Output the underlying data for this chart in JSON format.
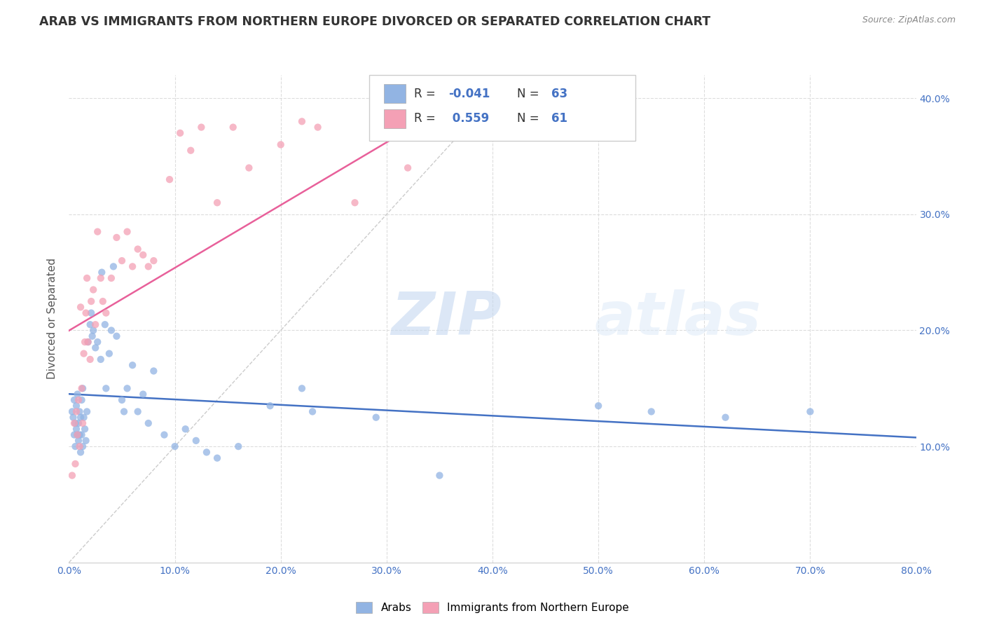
{
  "title": "ARAB VS IMMIGRANTS FROM NORTHERN EUROPE DIVORCED OR SEPARATED CORRELATION CHART",
  "source": "Source: ZipAtlas.com",
  "ylabel_label": "Divorced or Separated",
  "legend_label_bottom_1": "Arabs",
  "legend_label_bottom_2": "Immigrants from Northern Europe",
  "color_blue": "#92b4e3",
  "color_pink": "#f4a0b5",
  "color_blue_line": "#4472c4",
  "color_pink_line": "#e8609a",
  "color_diag": "#cccccc",
  "watermark_zip": "ZIP",
  "watermark_atlas": "atlas",
  "xlim": [
    0,
    80
  ],
  "ylim": [
    0,
    42
  ],
  "x_tick_vals": [
    0,
    10,
    20,
    30,
    40,
    50,
    60,
    70,
    80
  ],
  "y_tick_vals": [
    10,
    20,
    30,
    40
  ],
  "Arabs_x": [
    0.3,
    0.4,
    0.5,
    0.5,
    0.6,
    0.6,
    0.7,
    0.7,
    0.8,
    0.8,
    0.9,
    0.9,
    1.0,
    1.0,
    1.1,
    1.1,
    1.2,
    1.2,
    1.3,
    1.3,
    1.4,
    1.5,
    1.6,
    1.7,
    1.8,
    2.0,
    2.1,
    2.2,
    2.3,
    2.5,
    2.7,
    3.0,
    3.1,
    3.4,
    3.5,
    3.8,
    4.0,
    4.2,
    4.5,
    5.0,
    5.2,
    5.5,
    6.0,
    6.5,
    7.0,
    7.5,
    8.0,
    9.0,
    10.0,
    11.0,
    12.0,
    13.0,
    14.0,
    16.0,
    19.0,
    22.0,
    23.0,
    29.0,
    35.0,
    50.0,
    55.0,
    62.0,
    70.0
  ],
  "Arabs_y": [
    13.0,
    12.5,
    11.0,
    14.0,
    10.0,
    12.0,
    11.5,
    13.5,
    11.0,
    14.5,
    10.5,
    12.0,
    11.0,
    13.0,
    9.5,
    12.5,
    11.0,
    14.0,
    10.0,
    15.0,
    12.5,
    11.5,
    10.5,
    13.0,
    19.0,
    20.5,
    21.5,
    19.5,
    20.0,
    18.5,
    19.0,
    17.5,
    25.0,
    20.5,
    15.0,
    18.0,
    20.0,
    25.5,
    19.5,
    14.0,
    13.0,
    15.0,
    17.0,
    13.0,
    14.5,
    12.0,
    16.5,
    11.0,
    10.0,
    11.5,
    10.5,
    9.5,
    9.0,
    10.0,
    13.5,
    15.0,
    13.0,
    12.5,
    7.5,
    13.5,
    13.0,
    12.5,
    13.0
  ],
  "Immigrants_x": [
    0.3,
    0.5,
    0.6,
    0.7,
    0.8,
    0.9,
    1.0,
    1.1,
    1.2,
    1.3,
    1.4,
    1.5,
    1.6,
    1.7,
    1.8,
    2.0,
    2.1,
    2.3,
    2.5,
    2.7,
    3.0,
    3.2,
    3.5,
    4.0,
    4.5,
    5.0,
    5.5,
    6.0,
    6.5,
    7.0,
    7.5,
    8.0,
    9.5,
    10.5,
    11.5,
    12.5,
    14.0,
    15.5,
    17.0,
    20.0,
    22.0,
    23.5,
    27.0,
    29.0,
    32.0,
    35.5,
    37.5,
    40.0,
    42.0,
    44.0,
    46.0
  ],
  "Immigrants_y": [
    7.5,
    12.0,
    8.5,
    13.0,
    11.0,
    14.0,
    10.0,
    22.0,
    15.0,
    12.0,
    18.0,
    19.0,
    21.5,
    24.5,
    19.0,
    17.5,
    22.5,
    23.5,
    20.5,
    28.5,
    24.5,
    22.5,
    21.5,
    24.5,
    28.0,
    26.0,
    28.5,
    25.5,
    27.0,
    26.5,
    25.5,
    26.0,
    33.0,
    37.0,
    35.5,
    37.5,
    31.0,
    37.5,
    34.0,
    36.0,
    38.0,
    37.5,
    31.0,
    37.5,
    34.0,
    37.5,
    38.5,
    38.5,
    37.5,
    38.5,
    37.5
  ]
}
